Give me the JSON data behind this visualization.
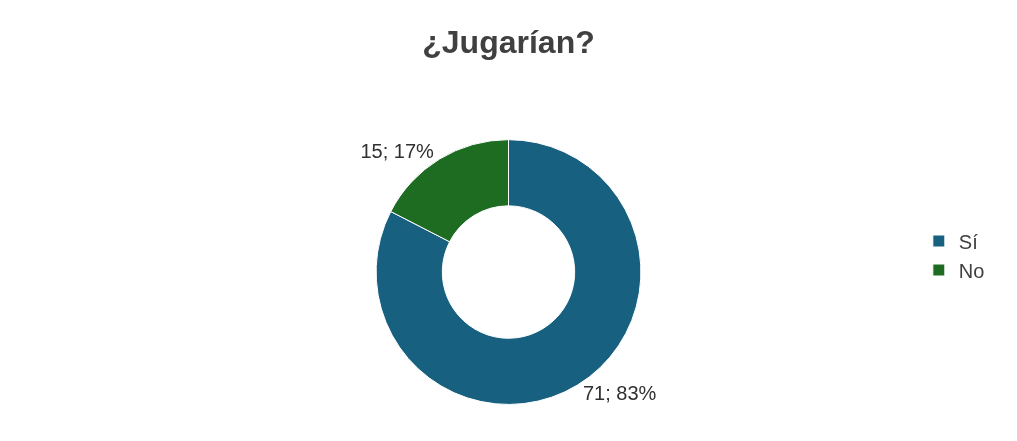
{
  "chart_data": {
    "type": "donut",
    "title": "¿Jugarían?",
    "categories": [
      "Sí",
      "No"
    ],
    "values": [
      71,
      15
    ],
    "colors": [
      "#17607f",
      "#1e6b22"
    ],
    "value_labels": [
      "71; 83%",
      "15; 17%"
    ],
    "legend": "right"
  }
}
